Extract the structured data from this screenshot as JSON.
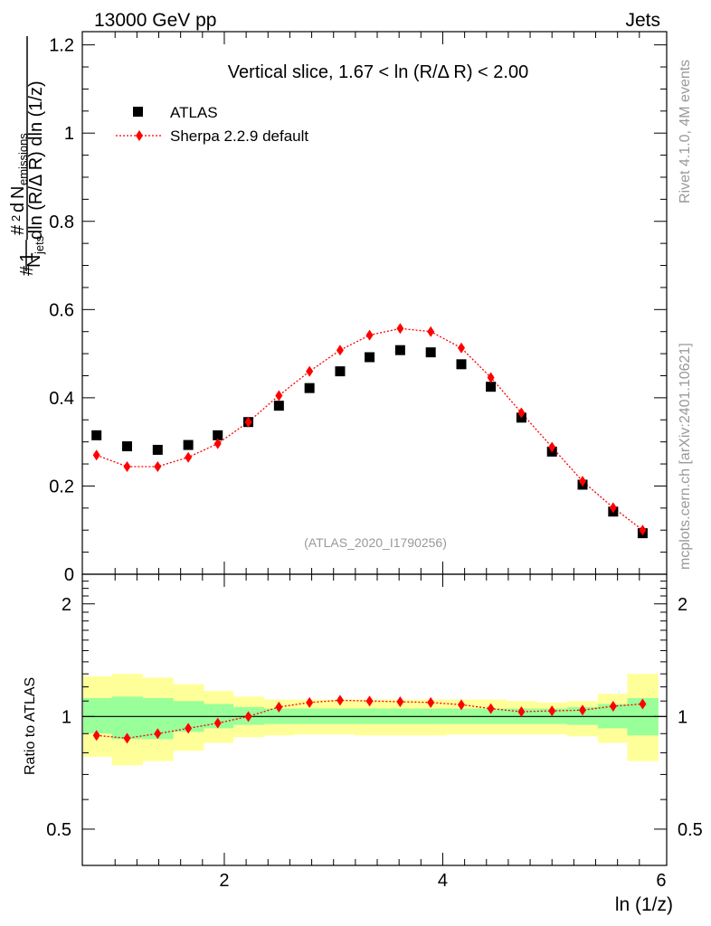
{
  "header": {
    "left": "13000 GeV pp",
    "right": "Jets"
  },
  "side": {
    "rivet": "Rivet 4.1.0,  4M events",
    "site": "mcplots.cern.ch [arXiv:2401.10621]"
  },
  "colors": {
    "atlas": "#000000",
    "sherpa": "#ff0000",
    "band_inner": "#99ff99",
    "band_outer": "#ffff99",
    "watermark": "#999999"
  },
  "chart_data": [
    {
      "type": "scatter",
      "title": "Vertical slice, 1.67 < ln (R/Δ R) < 2.00",
      "xlabel": "ln (1/z)",
      "ylabel": "#1/N_jets #d^2 N_emissions / dln (R/Δ R) dln (1/z)",
      "watermark": "(ATLAS_2020_I1790256)",
      "xlim": [
        0.7,
        6.05
      ],
      "ylim": [
        0,
        1.23
      ],
      "yticks": [
        0,
        0.2,
        0.4,
        0.6,
        0.8,
        1,
        1.2
      ],
      "ytick_labels": [
        "0",
        "0.2",
        "0.4",
        "0.6",
        "0.8",
        "1",
        "1.2"
      ],
      "xticks": [
        2,
        4,
        6
      ],
      "xtick_labels": [
        "2",
        "4",
        "6"
      ],
      "legend": [
        "ATLAS",
        "Sherpa 2.2.9 default"
      ],
      "legend_position": "top-left",
      "x": [
        0.83,
        1.11,
        1.39,
        1.67,
        1.94,
        2.22,
        2.5,
        2.78,
        3.06,
        3.33,
        3.61,
        3.89,
        4.17,
        4.44,
        4.72,
        5.0,
        5.28,
        5.56,
        5.83
      ],
      "series": [
        {
          "name": "ATLAS",
          "marker": "square",
          "values": [
            0.315,
            0.29,
            0.282,
            0.293,
            0.315,
            0.345,
            0.382,
            0.422,
            0.46,
            0.492,
            0.508,
            0.503,
            0.476,
            0.425,
            0.355,
            0.278,
            0.203,
            0.142,
            0.093
          ]
        },
        {
          "name": "Sherpa 2.2.9 default",
          "marker": "diamond",
          "line": "dotted",
          "values": [
            0.27,
            0.244,
            0.244,
            0.265,
            0.296,
            0.345,
            0.405,
            0.46,
            0.508,
            0.542,
            0.557,
            0.55,
            0.513,
            0.446,
            0.366,
            0.288,
            0.211,
            0.151,
            0.1
          ]
        }
      ]
    },
    {
      "type": "scatter",
      "ylabel": "Ratio to ATLAS",
      "xlabel": "ln (1/z)",
      "xlim": [
        0.7,
        6.05
      ],
      "ylim": [
        0.4,
        2.4
      ],
      "yscale": "log",
      "yticks": [
        0.5,
        1,
        2
      ],
      "ytick_labels": [
        "0.5",
        "1",
        "2"
      ],
      "x": [
        0.83,
        1.11,
        1.39,
        1.67,
        1.94,
        2.22,
        2.5,
        2.78,
        3.06,
        3.33,
        3.61,
        3.89,
        4.17,
        4.44,
        4.72,
        5.0,
        5.28,
        5.56,
        5.83
      ],
      "bin_edges": [
        0.69,
        0.97,
        1.25,
        1.53,
        1.81,
        2.08,
        2.36,
        2.64,
        2.92,
        3.19,
        3.47,
        3.75,
        4.03,
        4.31,
        4.58,
        4.86,
        5.14,
        5.42,
        5.69,
        5.97
      ],
      "band_inner": {
        "lower": [
          0.9,
          0.87,
          0.87,
          0.91,
          0.93,
          0.95,
          0.955,
          0.955,
          0.955,
          0.955,
          0.955,
          0.955,
          0.955,
          0.955,
          0.955,
          0.955,
          0.95,
          0.93,
          0.89
        ],
        "upper": [
          1.12,
          1.13,
          1.12,
          1.1,
          1.08,
          1.06,
          1.05,
          1.05,
          1.05,
          1.05,
          1.05,
          1.05,
          1.05,
          1.05,
          1.05,
          1.05,
          1.06,
          1.08,
          1.12
        ]
      },
      "band_outer": {
        "lower": [
          0.78,
          0.74,
          0.76,
          0.81,
          0.85,
          0.88,
          0.89,
          0.895,
          0.895,
          0.89,
          0.89,
          0.89,
          0.895,
          0.895,
          0.895,
          0.895,
          0.885,
          0.85,
          0.76
        ],
        "upper": [
          1.28,
          1.3,
          1.27,
          1.22,
          1.17,
          1.13,
          1.11,
          1.11,
          1.11,
          1.11,
          1.11,
          1.11,
          1.11,
          1.11,
          1.1,
          1.09,
          1.1,
          1.15,
          1.3
        ]
      },
      "series": [
        {
          "name": "Sherpa 2.2.9 default",
          "marker": "diamond",
          "line": "dotted",
          "values": [
            0.89,
            0.875,
            0.9,
            0.93,
            0.96,
            1.0,
            1.06,
            1.09,
            1.105,
            1.1,
            1.095,
            1.09,
            1.075,
            1.05,
            1.03,
            1.035,
            1.04,
            1.065,
            1.08
          ]
        }
      ]
    }
  ]
}
